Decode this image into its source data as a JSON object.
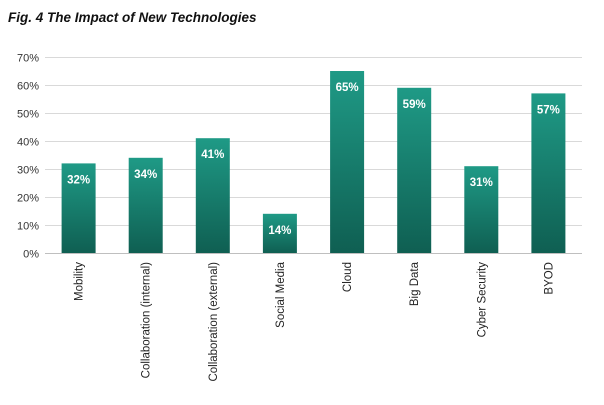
{
  "figure": {
    "title": "Fig. 4 The Impact of New Technologies"
  },
  "colors": {
    "bar_top": "#1f9a86",
    "bar_bottom": "#0f5f52",
    "grid": "#d9d9d9",
    "label_text": "#ffffff"
  },
  "chart_data": {
    "type": "bar",
    "title": "",
    "xlabel": "",
    "ylabel": "",
    "categories": [
      "Mobility",
      "Collaboration (internal)",
      "Collaboration (external)",
      "Social Media",
      "Cloud",
      "Big Data",
      "Cyber Security",
      "BYOD"
    ],
    "values": [
      32,
      34,
      41,
      14,
      65,
      59,
      31,
      57
    ],
    "data_labels": [
      "32%",
      "34%",
      "41%",
      "14%",
      "65%",
      "59%",
      "31%",
      "57%"
    ],
    "ylim": [
      0,
      70
    ],
    "yticks": [
      0,
      10,
      20,
      30,
      40,
      50,
      60,
      70
    ],
    "ytick_labels": [
      "0%",
      "10%",
      "20%",
      "30%",
      "40%",
      "50%",
      "60%",
      "70%"
    ],
    "grid": true,
    "legend": "none",
    "x_label_rotation": "vertical"
  }
}
